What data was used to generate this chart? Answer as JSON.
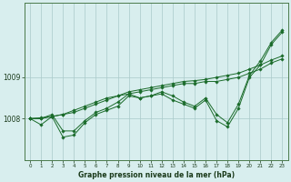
{
  "xlabel": "Graphe pression niveau de la mer (hPa)",
  "background_color": "#d8eeee",
  "plot_bg_color": "#d8eeee",
  "grid_color": "#aacaca",
  "line_color": "#1a6b2a",
  "x_ticks": [
    0,
    1,
    2,
    3,
    4,
    5,
    6,
    7,
    8,
    9,
    10,
    11,
    12,
    13,
    14,
    15,
    16,
    17,
    18,
    19,
    20,
    21,
    22,
    23
  ],
  "xlim": [
    -0.5,
    23.5
  ],
  "ylim": [
    1007.0,
    1010.8
  ],
  "yticks": [
    1008,
    1009
  ],
  "series": [
    [
      1008.0,
      1007.85,
      1008.05,
      1007.55,
      1007.6,
      1007.9,
      1008.1,
      1008.2,
      1008.3,
      1008.55,
      1008.5,
      1008.55,
      1008.6,
      1008.45,
      1008.35,
      1008.25,
      1008.45,
      1007.95,
      1007.8,
      1008.25,
      1009.0,
      1009.3,
      1009.8,
      1010.1
    ],
    [
      1008.0,
      1008.0,
      1008.1,
      1007.7,
      1007.7,
      1007.95,
      1008.15,
      1008.25,
      1008.4,
      1008.6,
      1008.5,
      1008.55,
      1008.65,
      1008.55,
      1008.4,
      1008.3,
      1008.5,
      1008.1,
      1007.9,
      1008.35,
      1009.05,
      1009.4,
      1009.85,
      1010.15
    ],
    [
      1008.0,
      1008.0,
      1008.05,
      1008.1,
      1008.2,
      1008.3,
      1008.4,
      1008.5,
      1008.55,
      1008.6,
      1008.65,
      1008.7,
      1008.75,
      1008.8,
      1008.85,
      1008.85,
      1008.9,
      1008.9,
      1008.95,
      1009.0,
      1009.1,
      1009.2,
      1009.35,
      1009.45
    ],
    [
      1008.0,
      1008.02,
      1008.05,
      1008.1,
      1008.15,
      1008.25,
      1008.35,
      1008.45,
      1008.55,
      1008.65,
      1008.7,
      1008.75,
      1008.8,
      1008.85,
      1008.9,
      1008.92,
      1008.95,
      1009.0,
      1009.05,
      1009.1,
      1009.2,
      1009.3,
      1009.42,
      1009.52
    ]
  ]
}
